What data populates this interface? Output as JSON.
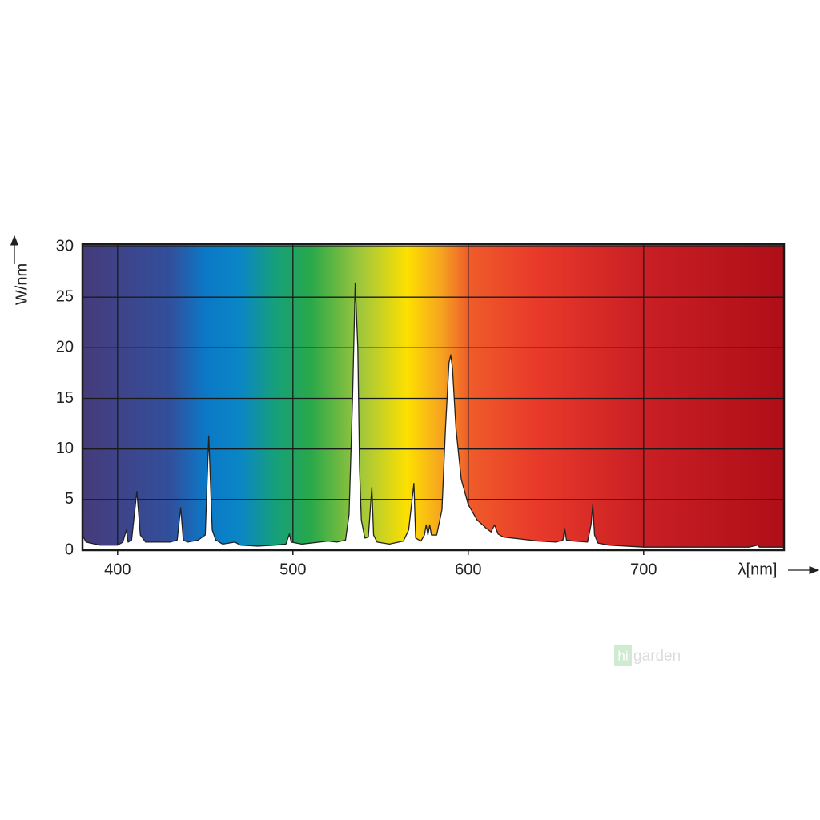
{
  "chart_data": {
    "type": "area",
    "x_label": "λ[nm]",
    "y_label": "W/nm",
    "xlim": [
      380,
      780
    ],
    "xticks": [
      400,
      500,
      600,
      700
    ],
    "ylim": [
      0,
      30
    ],
    "yticks": [
      0,
      5,
      10,
      15,
      20,
      25,
      30
    ],
    "grid": true,
    "color": "#ffffff",
    "x": [
      380,
      382,
      390,
      400,
      403,
      405,
      406,
      408,
      411,
      413,
      416,
      430,
      434,
      436,
      437.5,
      440,
      446,
      450,
      452,
      454,
      456,
      460,
      467,
      470,
      480,
      490,
      496,
      498,
      499,
      505,
      515,
      520,
      525,
      530,
      532,
      534,
      535.5,
      537,
      538,
      539,
      541,
      543,
      545,
      546,
      548,
      555,
      563,
      566,
      569,
      570,
      573,
      575,
      576,
      577,
      578,
      579,
      582,
      585,
      587,
      589,
      590,
      591,
      593,
      596,
      600,
      605,
      610,
      613,
      615,
      617,
      620,
      630,
      640,
      650,
      654,
      655,
      656,
      660,
      668,
      670,
      671,
      672,
      674,
      680,
      690,
      700,
      720,
      760,
      765,
      766,
      780
    ],
    "values": [
      1.5,
      0.8,
      0.5,
      0.5,
      0.8,
      2.0,
      0.8,
      1.0,
      5.8,
      1.5,
      0.8,
      0.8,
      1.0,
      4.2,
      1.0,
      0.8,
      1.0,
      1.5,
      11.3,
      2.0,
      1.0,
      0.6,
      0.8,
      0.5,
      0.4,
      0.5,
      0.6,
      1.6,
      0.8,
      0.6,
      0.8,
      0.9,
      0.8,
      1.0,
      3.5,
      15,
      26.4,
      20,
      8,
      3,
      1.2,
      1.3,
      6.2,
      1.5,
      0.8,
      0.6,
      0.9,
      2.0,
      6.6,
      1.2,
      0.9,
      1.5,
      2.5,
      1.5,
      2.5,
      1.5,
      1.5,
      4,
      12,
      18.5,
      19.3,
      18,
      12,
      7,
      4.5,
      3,
      2.2,
      1.8,
      2.5,
      1.6,
      1.3,
      1.1,
      0.9,
      0.8,
      1.0,
      2.2,
      1.0,
      0.9,
      0.8,
      2.5,
      4.5,
      1.5,
      0.7,
      0.5,
      0.4,
      0.3,
      0.3,
      0.3,
      0.5,
      0.3,
      0.3
    ]
  },
  "watermark": {
    "badge": "hi",
    "text": "garden"
  }
}
